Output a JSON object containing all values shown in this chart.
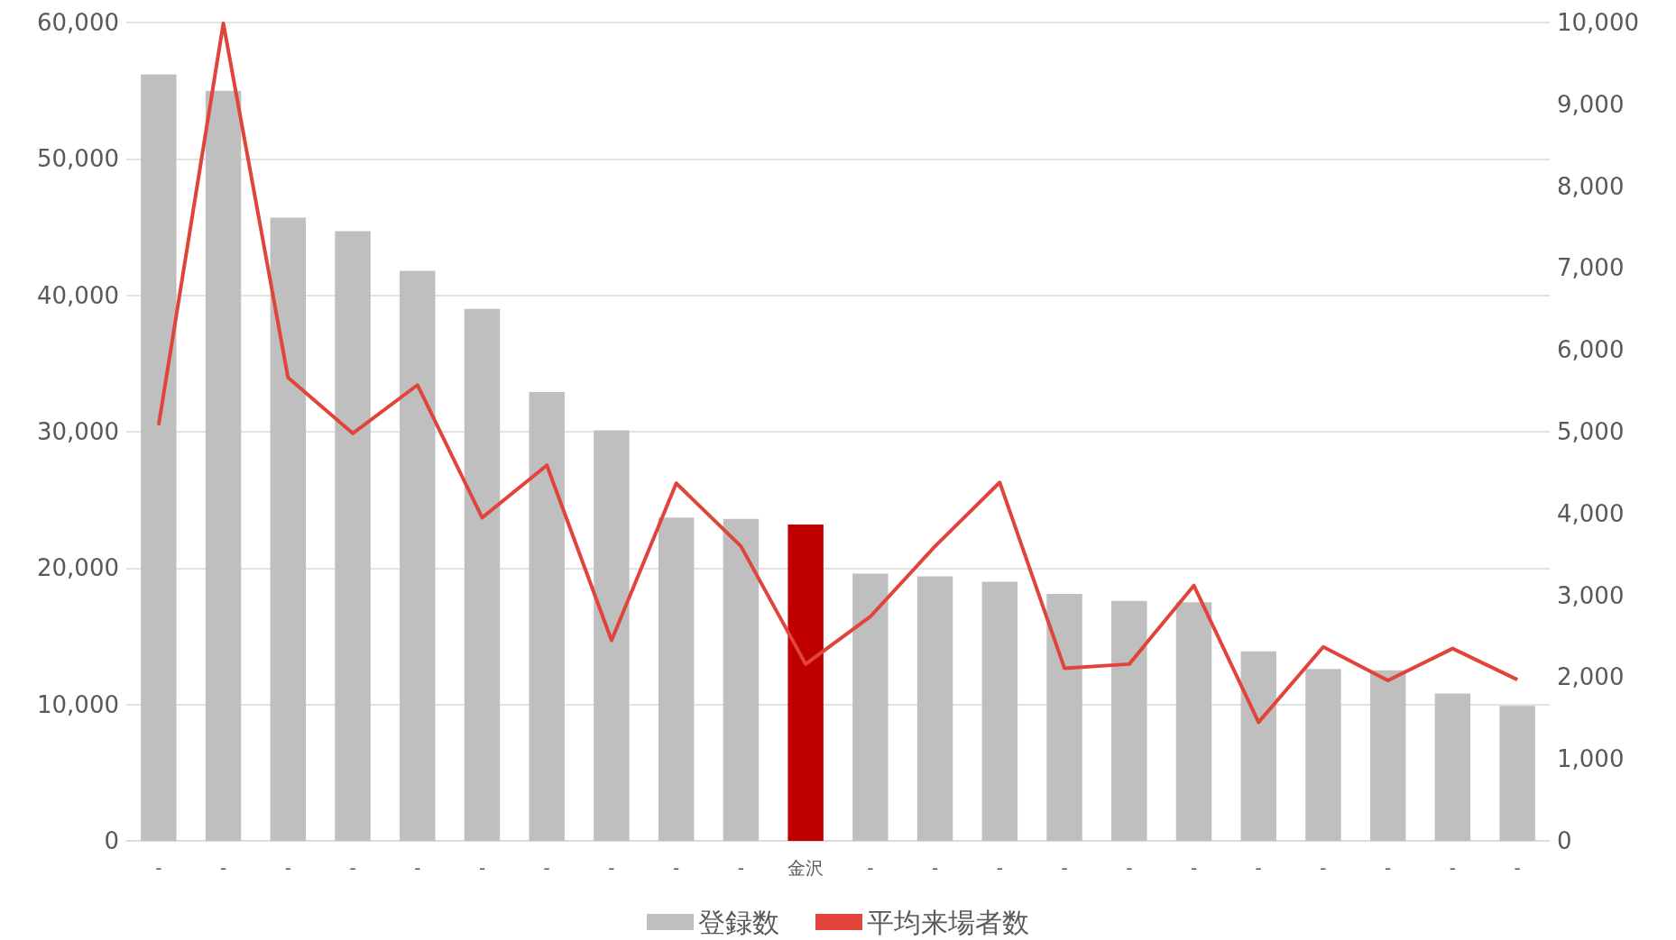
{
  "chart_data": {
    "type": "bar",
    "categories": [
      "-",
      "-",
      "-",
      "-",
      "-",
      "-",
      "-",
      "-",
      "-",
      "-",
      "金沢",
      "-",
      "-",
      "-",
      "-",
      "-",
      "-",
      "-",
      "-",
      "-",
      "-",
      "-"
    ],
    "series": [
      {
        "name": "登録数",
        "colors": [
          "#bfbfbf",
          "#bfbfbf",
          "#bfbfbf",
          "#bfbfbf",
          "#bfbfbf",
          "#bfbfbf",
          "#bfbfbf",
          "#bfbfbf",
          "#bfbfbf",
          "#bfbfbf",
          "#c00000",
          "#bfbfbf",
          "#bfbfbf",
          "#bfbfbf",
          "#bfbfbf",
          "#bfbfbf",
          "#bfbfbf",
          "#bfbfbf",
          "#bfbfbf",
          "#bfbfbf",
          "#bfbfbf",
          "#bfbfbf"
        ],
        "color": "#bfbfbf",
        "values": [
          56200,
          55000,
          45700,
          44700,
          41800,
          39000,
          32900,
          30100,
          23700,
          23600,
          23200,
          19600,
          19400,
          19000,
          18100,
          17600,
          17500,
          13900,
          12600,
          12500,
          10800,
          9900
        ]
      },
      {
        "name": "平均来場者数",
        "type": "line",
        "axis": "y2",
        "color": "#e0443a",
        "values": [
          5080,
          9990,
          5660,
          4980,
          5570,
          3950,
          4590,
          2450,
          4370,
          3600,
          2160,
          2740,
          3600,
          4380,
          2110,
          2160,
          3120,
          1450,
          2370,
          1960,
          2350,
          1970
        ]
      }
    ],
    "ylim": [
      0,
      60000
    ],
    "yticks": [
      0,
      {
        "value": 10000,
        "label": "10,000"
      },
      {
        "value": 20000,
        "label": "20,000"
      },
      {
        "value": 30000,
        "label": "30,000"
      },
      {
        "value": 40000,
        "label": "40,000"
      },
      {
        "value": 50000,
        "label": "50,000"
      },
      {
        "value": 60000,
        "label": "60,000"
      }
    ],
    "y2lim": [
      0,
      10000
    ],
    "y2ticks": [
      0,
      {
        "value": 1000,
        "label": "1,000"
      },
      {
        "value": 2000,
        "label": "2,000"
      },
      {
        "value": 3000,
        "label": "3,000"
      },
      {
        "value": 4000,
        "label": "4,000"
      },
      {
        "value": 5000,
        "label": "5,000"
      },
      {
        "value": 6000,
        "label": "6,000"
      },
      {
        "value": 7000,
        "label": "7,000"
      },
      {
        "value": 8000,
        "label": "8,000"
      },
      {
        "value": 9000,
        "label": "9,000"
      },
      {
        "value": 10000,
        "label": "10,000"
      }
    ],
    "grid": "y",
    "legend": "bottom",
    "marker": "none",
    "line_style": "solid"
  }
}
